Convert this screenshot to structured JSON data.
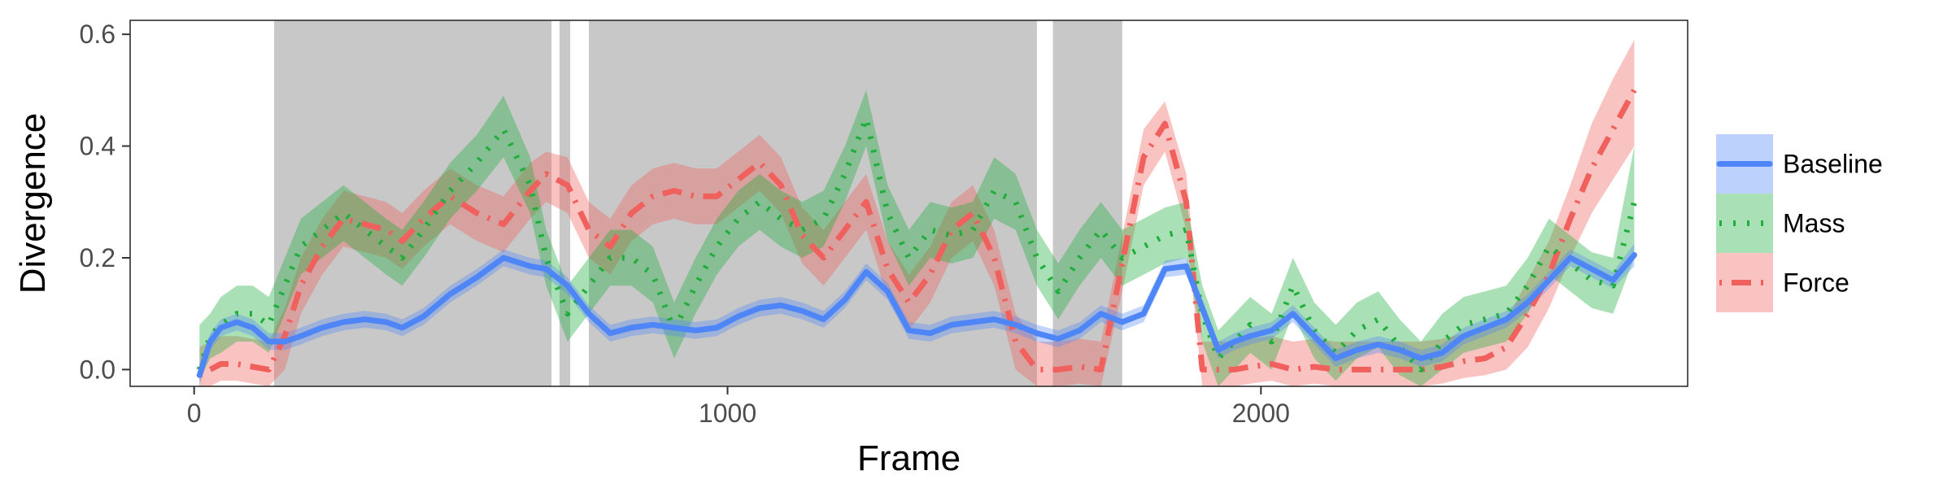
{
  "chart_data": {
    "type": "line",
    "xlabel": "Frame",
    "ylabel": "Divergence",
    "xlim": [
      -120,
      2800
    ],
    "ylim": [
      -0.03,
      0.625
    ],
    "x_ticks": [
      0,
      1000,
      2000
    ],
    "y_ticks": [
      0.0,
      0.2,
      0.4,
      0.6
    ],
    "x_tick_labels": [
      "0",
      "1000",
      "2000"
    ],
    "y_tick_labels": [
      "0.0",
      "0.2",
      "0.4",
      "0.6"
    ],
    "grid": false,
    "legend_position": "right",
    "shaded_regions": [
      [
        150,
        670
      ],
      [
        685,
        705
      ],
      [
        740,
        1580
      ],
      [
        1610,
        1740
      ]
    ],
    "x": [
      10,
      30,
      50,
      80,
      110,
      140,
      170,
      200,
      240,
      280,
      320,
      360,
      390,
      430,
      480,
      530,
      580,
      630,
      660,
      700,
      740,
      780,
      820,
      860,
      900,
      940,
      980,
      1020,
      1060,
      1100,
      1140,
      1180,
      1220,
      1260,
      1300,
      1340,
      1380,
      1420,
      1460,
      1500,
      1540,
      1580,
      1620,
      1660,
      1700,
      1740,
      1780,
      1820,
      1860,
      1890,
      1920,
      1950,
      1980,
      2020,
      2060,
      2100,
      2140,
      2180,
      2220,
      2260,
      2300,
      2340,
      2380,
      2420,
      2460,
      2500,
      2540,
      2580,
      2620,
      2660,
      2700
    ],
    "series": [
      {
        "name": "Baseline",
        "color": "#4f86f7",
        "dash": "solid",
        "values": [
          -0.01,
          0.05,
          0.075,
          0.085,
          0.075,
          0.05,
          0.05,
          0.06,
          0.075,
          0.085,
          0.09,
          0.085,
          0.075,
          0.095,
          0.135,
          0.165,
          0.2,
          0.185,
          0.18,
          0.15,
          0.1,
          0.065,
          0.075,
          0.08,
          0.075,
          0.07,
          0.075,
          0.095,
          0.11,
          0.115,
          0.105,
          0.09,
          0.125,
          0.175,
          0.14,
          0.07,
          0.065,
          0.08,
          0.085,
          0.09,
          0.08,
          0.065,
          0.055,
          0.07,
          0.1,
          0.085,
          0.1,
          0.18,
          0.185,
          0.11,
          0.035,
          0.05,
          0.06,
          0.07,
          0.1,
          0.06,
          0.02,
          0.035,
          0.045,
          0.035,
          0.02,
          0.03,
          0.06,
          0.075,
          0.09,
          0.12,
          0.16,
          0.2,
          0.18,
          0.16,
          0.205
        ],
        "lower": [
          -0.03,
          0.035,
          0.06,
          0.07,
          0.06,
          0.035,
          0.035,
          0.045,
          0.06,
          0.07,
          0.075,
          0.07,
          0.06,
          0.08,
          0.12,
          0.15,
          0.185,
          0.17,
          0.165,
          0.135,
          0.085,
          0.05,
          0.06,
          0.065,
          0.06,
          0.055,
          0.06,
          0.08,
          0.095,
          0.1,
          0.09,
          0.075,
          0.11,
          0.16,
          0.125,
          0.055,
          0.05,
          0.065,
          0.07,
          0.075,
          0.065,
          0.05,
          0.04,
          0.055,
          0.085,
          0.07,
          0.085,
          0.165,
          0.17,
          0.095,
          0.02,
          0.035,
          0.045,
          0.055,
          0.085,
          0.045,
          0.005,
          0.02,
          0.03,
          0.02,
          0.005,
          0.015,
          0.045,
          0.06,
          0.075,
          0.105,
          0.145,
          0.185,
          0.165,
          0.145,
          0.185
        ],
        "upper": [
          0.01,
          0.065,
          0.09,
          0.1,
          0.09,
          0.065,
          0.065,
          0.075,
          0.09,
          0.1,
          0.105,
          0.1,
          0.09,
          0.11,
          0.15,
          0.18,
          0.215,
          0.2,
          0.195,
          0.165,
          0.115,
          0.08,
          0.09,
          0.095,
          0.09,
          0.085,
          0.09,
          0.11,
          0.125,
          0.13,
          0.12,
          0.105,
          0.14,
          0.19,
          0.155,
          0.085,
          0.08,
          0.095,
          0.1,
          0.105,
          0.095,
          0.08,
          0.07,
          0.085,
          0.115,
          0.1,
          0.115,
          0.195,
          0.2,
          0.125,
          0.05,
          0.065,
          0.075,
          0.085,
          0.115,
          0.075,
          0.035,
          0.05,
          0.06,
          0.05,
          0.035,
          0.045,
          0.075,
          0.09,
          0.105,
          0.135,
          0.175,
          0.215,
          0.195,
          0.175,
          0.225
        ]
      },
      {
        "name": "Mass",
        "color": "#1fad3c",
        "dash": "dotted",
        "values": [
          0.0,
          0.06,
          0.08,
          0.1,
          0.1,
          0.08,
          0.15,
          0.22,
          0.25,
          0.28,
          0.25,
          0.22,
          0.2,
          0.25,
          0.32,
          0.37,
          0.43,
          0.33,
          0.2,
          0.1,
          0.15,
          0.2,
          0.2,
          0.17,
          0.07,
          0.15,
          0.22,
          0.27,
          0.3,
          0.27,
          0.25,
          0.27,
          0.35,
          0.45,
          0.28,
          0.2,
          0.25,
          0.24,
          0.25,
          0.32,
          0.3,
          0.2,
          0.14,
          0.2,
          0.25,
          0.2,
          0.22,
          0.24,
          0.25,
          0.1,
          0.02,
          0.05,
          0.08,
          0.05,
          0.15,
          0.07,
          0.03,
          0.07,
          0.09,
          0.04,
          0.0,
          0.05,
          0.08,
          0.09,
          0.1,
          0.15,
          0.22,
          0.19,
          0.16,
          0.15,
          0.3
        ],
        "lower": [
          -0.02,
          0.02,
          0.03,
          0.05,
          0.05,
          0.03,
          0.1,
          0.17,
          0.2,
          0.23,
          0.2,
          0.17,
          0.15,
          0.2,
          0.27,
          0.32,
          0.38,
          0.28,
          0.15,
          0.05,
          0.1,
          0.15,
          0.15,
          0.12,
          0.02,
          0.1,
          0.17,
          0.22,
          0.25,
          0.22,
          0.2,
          0.22,
          0.3,
          0.4,
          0.23,
          0.15,
          0.2,
          0.19,
          0.2,
          0.27,
          0.25,
          0.15,
          0.09,
          0.15,
          0.2,
          0.15,
          0.17,
          0.19,
          0.2,
          0.05,
          -0.03,
          0.0,
          0.03,
          0.0,
          0.1,
          0.02,
          -0.02,
          0.02,
          0.04,
          -0.01,
          -0.03,
          0.0,
          0.03,
          0.04,
          0.05,
          0.1,
          0.17,
          0.14,
          0.11,
          0.1,
          0.2
        ],
        "upper": [
          0.08,
          0.1,
          0.13,
          0.15,
          0.15,
          0.13,
          0.2,
          0.27,
          0.3,
          0.33,
          0.3,
          0.27,
          0.25,
          0.3,
          0.37,
          0.42,
          0.49,
          0.38,
          0.25,
          0.15,
          0.2,
          0.25,
          0.25,
          0.22,
          0.12,
          0.2,
          0.27,
          0.32,
          0.35,
          0.32,
          0.3,
          0.32,
          0.4,
          0.5,
          0.33,
          0.25,
          0.3,
          0.29,
          0.3,
          0.38,
          0.35,
          0.25,
          0.19,
          0.25,
          0.3,
          0.25,
          0.27,
          0.29,
          0.3,
          0.15,
          0.07,
          0.1,
          0.13,
          0.1,
          0.2,
          0.12,
          0.08,
          0.12,
          0.14,
          0.09,
          0.05,
          0.1,
          0.13,
          0.14,
          0.15,
          0.2,
          0.27,
          0.24,
          0.21,
          0.2,
          0.4
        ]
      },
      {
        "name": "Force",
        "color": "#f0605d",
        "dash": "dotdash",
        "values": [
          -0.01,
          0.0,
          0.01,
          0.01,
          0.005,
          0.0,
          0.06,
          0.15,
          0.22,
          0.27,
          0.26,
          0.25,
          0.23,
          0.27,
          0.31,
          0.28,
          0.26,
          0.32,
          0.35,
          0.33,
          0.25,
          0.22,
          0.28,
          0.31,
          0.32,
          0.31,
          0.31,
          0.34,
          0.37,
          0.33,
          0.24,
          0.2,
          0.25,
          0.3,
          0.18,
          0.12,
          0.17,
          0.25,
          0.28,
          0.2,
          0.05,
          0.0,
          0.0,
          0.005,
          0.0,
          0.19,
          0.38,
          0.44,
          0.3,
          0.0,
          0.0,
          0.0,
          0.005,
          0.01,
          0.0,
          0.005,
          0.0,
          0.0,
          0.0,
          0.0,
          0.0,
          0.005,
          0.015,
          0.02,
          0.04,
          0.1,
          0.17,
          0.27,
          0.36,
          0.43,
          0.5
        ],
        "lower": [
          -0.03,
          -0.03,
          -0.02,
          -0.02,
          -0.025,
          -0.03,
          0.0,
          0.1,
          0.17,
          0.22,
          0.21,
          0.2,
          0.18,
          0.22,
          0.26,
          0.23,
          0.21,
          0.27,
          0.3,
          0.28,
          0.2,
          0.17,
          0.23,
          0.26,
          0.27,
          0.26,
          0.26,
          0.29,
          0.32,
          0.28,
          0.19,
          0.15,
          0.2,
          0.25,
          0.13,
          0.07,
          0.12,
          0.2,
          0.23,
          0.15,
          0.0,
          -0.03,
          -0.03,
          -0.025,
          -0.03,
          0.14,
          0.33,
          0.39,
          0.25,
          -0.03,
          -0.03,
          -0.03,
          -0.025,
          -0.02,
          -0.03,
          -0.025,
          -0.03,
          -0.03,
          -0.03,
          -0.03,
          -0.03,
          -0.025,
          -0.015,
          -0.01,
          0.0,
          0.04,
          0.11,
          0.2,
          0.28,
          0.34,
          0.4
        ],
        "upper": [
          0.04,
          0.05,
          0.06,
          0.06,
          0.055,
          0.05,
          0.11,
          0.2,
          0.27,
          0.32,
          0.31,
          0.3,
          0.28,
          0.32,
          0.36,
          0.33,
          0.31,
          0.37,
          0.39,
          0.38,
          0.3,
          0.27,
          0.33,
          0.36,
          0.37,
          0.36,
          0.36,
          0.39,
          0.42,
          0.38,
          0.29,
          0.25,
          0.3,
          0.35,
          0.23,
          0.17,
          0.22,
          0.3,
          0.33,
          0.25,
          0.1,
          0.05,
          0.05,
          0.055,
          0.05,
          0.24,
          0.43,
          0.48,
          0.35,
          0.05,
          0.05,
          0.05,
          0.055,
          0.06,
          0.05,
          0.055,
          0.05,
          0.05,
          0.05,
          0.05,
          0.05,
          0.055,
          0.065,
          0.07,
          0.09,
          0.16,
          0.23,
          0.33,
          0.44,
          0.52,
          0.59
        ]
      }
    ]
  }
}
